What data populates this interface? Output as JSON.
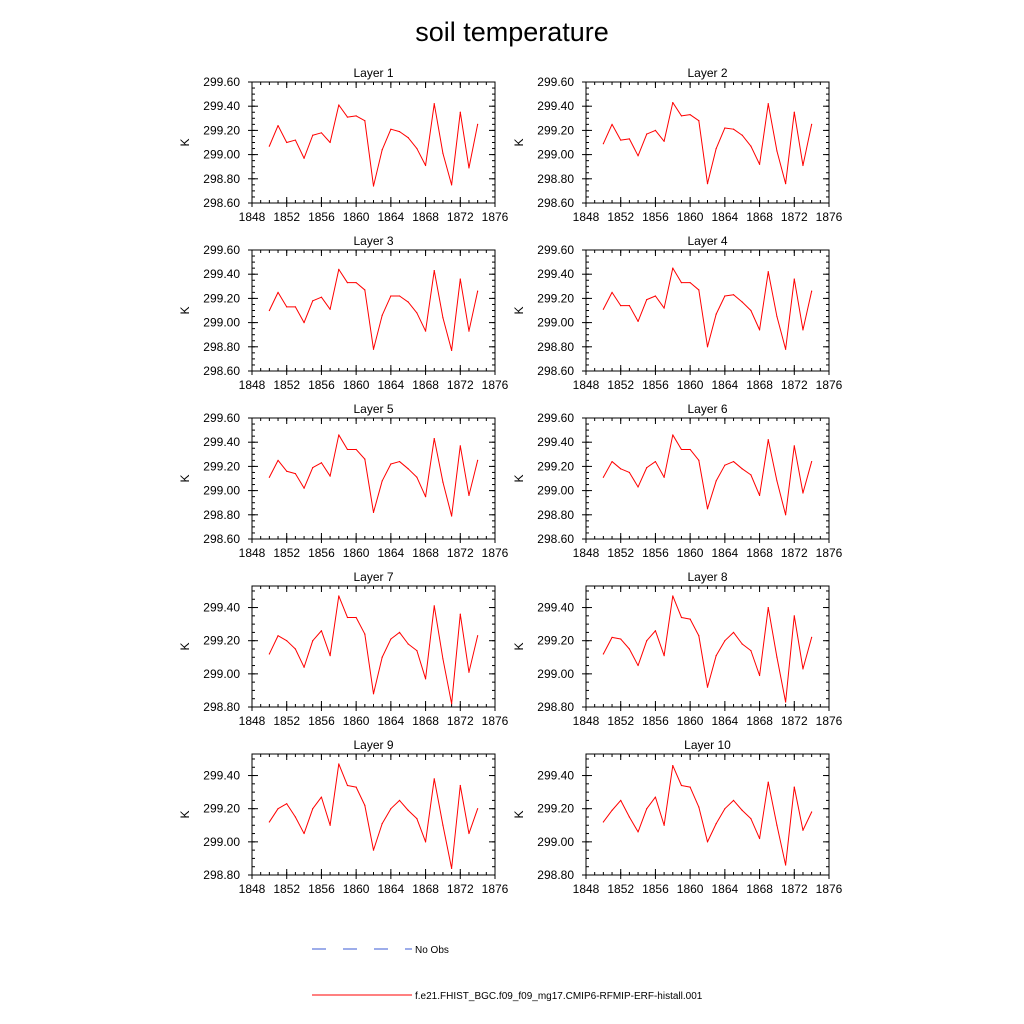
{
  "title": "soil temperature",
  "colors": {
    "model": "#ff0000",
    "obs": "#3b5bd6",
    "axis": "#000000"
  },
  "legend": [
    {
      "label": "No Obs",
      "style": "dashed",
      "color": "#3b5bd6"
    },
    {
      "label": "f.e21.FHIST_BGC.f09_f09_mg17.CMIP6-RFMIP-ERF-histall.001",
      "style": "solid",
      "color": "#ff0000"
    }
  ],
  "chart_data": [
    {
      "type": "line",
      "title": "Layer 1",
      "ylabel": "K",
      "xlim": [
        1848,
        1876
      ],
      "ylim": [
        298.6,
        299.6
      ],
      "xticks": [
        "1848",
        "1852",
        "1856",
        "1860",
        "1864",
        "1868",
        "1872",
        "1876"
      ],
      "yticks": [
        "298.60",
        "298.80",
        "299.00",
        "299.20",
        "299.40",
        "299.60"
      ],
      "x": [
        1850,
        1851,
        1852,
        1853,
        1854,
        1855,
        1856,
        1857,
        1858,
        1859,
        1860,
        1861,
        1862,
        1863,
        1864,
        1865,
        1866,
        1867,
        1868,
        1869,
        1870,
        1871,
        1872,
        1873,
        1874
      ],
      "series": [
        {
          "name": "f.e21.FHIST_BGC.f09_f09_mg17.CMIP6-RFMIP-ERF-histall.001",
          "values": [
            299.07,
            299.24,
            299.1,
            299.12,
            298.97,
            299.16,
            299.18,
            299.1,
            299.41,
            299.31,
            299.32,
            299.28,
            298.74,
            299.04,
            299.21,
            299.19,
            299.14,
            299.05,
            298.91,
            299.42,
            299.01,
            298.75,
            299.35,
            298.89,
            299.25
          ]
        }
      ]
    },
    {
      "type": "line",
      "title": "Layer 2",
      "ylabel": "K",
      "xlim": [
        1848,
        1876
      ],
      "ylim": [
        298.6,
        299.6
      ],
      "xticks": [
        "1848",
        "1852",
        "1856",
        "1860",
        "1864",
        "1868",
        "1872",
        "1876"
      ],
      "yticks": [
        "298.60",
        "298.80",
        "299.00",
        "299.20",
        "299.40",
        "299.60"
      ],
      "x": [
        1850,
        1851,
        1852,
        1853,
        1854,
        1855,
        1856,
        1857,
        1858,
        1859,
        1860,
        1861,
        1862,
        1863,
        1864,
        1865,
        1866,
        1867,
        1868,
        1869,
        1870,
        1871,
        1872,
        1873,
        1874
      ],
      "series": [
        {
          "name": "f.e21.FHIST_BGC.f09_f09_mg17.CMIP6-RFMIP-ERF-histall.001",
          "values": [
            299.09,
            299.25,
            299.12,
            299.13,
            298.99,
            299.17,
            299.2,
            299.11,
            299.43,
            299.32,
            299.33,
            299.28,
            298.76,
            299.05,
            299.22,
            299.21,
            299.16,
            299.07,
            298.92,
            299.42,
            299.03,
            298.76,
            299.35,
            298.91,
            299.25
          ]
        }
      ]
    },
    {
      "type": "line",
      "title": "Layer 3",
      "ylabel": "K",
      "xlim": [
        1848,
        1876
      ],
      "ylim": [
        298.6,
        299.6
      ],
      "xticks": [
        "1848",
        "1852",
        "1856",
        "1860",
        "1864",
        "1868",
        "1872",
        "1876"
      ],
      "yticks": [
        "298.60",
        "298.80",
        "299.00",
        "299.20",
        "299.40",
        "299.60"
      ],
      "x": [
        1850,
        1851,
        1852,
        1853,
        1854,
        1855,
        1856,
        1857,
        1858,
        1859,
        1860,
        1861,
        1862,
        1863,
        1864,
        1865,
        1866,
        1867,
        1868,
        1869,
        1870,
        1871,
        1872,
        1873,
        1874
      ],
      "series": [
        {
          "name": "f.e21.FHIST_BGC.f09_f09_mg17.CMIP6-RFMIP-ERF-histall.001",
          "values": [
            299.1,
            299.25,
            299.13,
            299.13,
            299.0,
            299.18,
            299.21,
            299.11,
            299.44,
            299.33,
            299.33,
            299.27,
            298.78,
            299.06,
            299.22,
            299.22,
            299.17,
            299.08,
            298.93,
            299.43,
            299.04,
            298.77,
            299.36,
            298.93,
            299.26
          ]
        }
      ]
    },
    {
      "type": "line",
      "title": "Layer 4",
      "ylabel": "K",
      "xlim": [
        1848,
        1876
      ],
      "ylim": [
        298.6,
        299.6
      ],
      "xticks": [
        "1848",
        "1852",
        "1856",
        "1860",
        "1864",
        "1868",
        "1872",
        "1876"
      ],
      "yticks": [
        "298.60",
        "298.80",
        "299.00",
        "299.20",
        "299.40",
        "299.60"
      ],
      "x": [
        1850,
        1851,
        1852,
        1853,
        1854,
        1855,
        1856,
        1857,
        1858,
        1859,
        1860,
        1861,
        1862,
        1863,
        1864,
        1865,
        1866,
        1867,
        1868,
        1869,
        1870,
        1871,
        1872,
        1873,
        1874
      ],
      "series": [
        {
          "name": "f.e21.FHIST_BGC.f09_f09_mg17.CMIP6-RFMIP-ERF-histall.001",
          "values": [
            299.11,
            299.25,
            299.14,
            299.14,
            299.01,
            299.19,
            299.22,
            299.12,
            299.45,
            299.33,
            299.33,
            299.27,
            298.8,
            299.07,
            299.22,
            299.23,
            299.17,
            299.1,
            298.94,
            299.42,
            299.05,
            298.78,
            299.36,
            298.94,
            299.26
          ]
        }
      ]
    },
    {
      "type": "line",
      "title": "Layer 5",
      "ylabel": "K",
      "xlim": [
        1848,
        1876
      ],
      "ylim": [
        298.6,
        299.6
      ],
      "xticks": [
        "1848",
        "1852",
        "1856",
        "1860",
        "1864",
        "1868",
        "1872",
        "1876"
      ],
      "yticks": [
        "298.60",
        "298.80",
        "299.00",
        "299.20",
        "299.40",
        "299.60"
      ],
      "x": [
        1850,
        1851,
        1852,
        1853,
        1854,
        1855,
        1856,
        1857,
        1858,
        1859,
        1860,
        1861,
        1862,
        1863,
        1864,
        1865,
        1866,
        1867,
        1868,
        1869,
        1870,
        1871,
        1872,
        1873,
        1874
      ],
      "series": [
        {
          "name": "f.e21.FHIST_BGC.f09_f09_mg17.CMIP6-RFMIP-ERF-histall.001",
          "values": [
            299.11,
            299.25,
            299.16,
            299.14,
            299.02,
            299.19,
            299.23,
            299.12,
            299.46,
            299.34,
            299.34,
            299.26,
            298.82,
            299.08,
            299.22,
            299.24,
            299.18,
            299.11,
            298.95,
            299.43,
            299.07,
            298.79,
            299.37,
            298.96,
            299.25
          ]
        }
      ]
    },
    {
      "type": "line",
      "title": "Layer 6",
      "ylabel": "K",
      "xlim": [
        1848,
        1876
      ],
      "ylim": [
        298.6,
        299.6
      ],
      "xticks": [
        "1848",
        "1852",
        "1856",
        "1860",
        "1864",
        "1868",
        "1872",
        "1876"
      ],
      "yticks": [
        "298.60",
        "298.80",
        "299.00",
        "299.20",
        "299.40",
        "299.60"
      ],
      "x": [
        1850,
        1851,
        1852,
        1853,
        1854,
        1855,
        1856,
        1857,
        1858,
        1859,
        1860,
        1861,
        1862,
        1863,
        1864,
        1865,
        1866,
        1867,
        1868,
        1869,
        1870,
        1871,
        1872,
        1873,
        1874
      ],
      "series": [
        {
          "name": "f.e21.FHIST_BGC.f09_f09_mg17.CMIP6-RFMIP-ERF-histall.001",
          "values": [
            299.11,
            299.24,
            299.18,
            299.15,
            299.03,
            299.19,
            299.24,
            299.11,
            299.46,
            299.34,
            299.34,
            299.25,
            298.85,
            299.08,
            299.21,
            299.24,
            299.18,
            299.13,
            298.96,
            299.42,
            299.08,
            298.8,
            299.37,
            298.98,
            299.24
          ]
        }
      ]
    },
    {
      "type": "line",
      "title": "Layer 7",
      "ylabel": "K",
      "xlim": [
        1848,
        1876
      ],
      "ylim": [
        298.8,
        299.53
      ],
      "xticks": [
        "1848",
        "1852",
        "1856",
        "1860",
        "1864",
        "1868",
        "1872",
        "1876"
      ],
      "yticks": [
        "298.80",
        "299.00",
        "299.20",
        "299.40"
      ],
      "x": [
        1850,
        1851,
        1852,
        1853,
        1854,
        1855,
        1856,
        1857,
        1858,
        1859,
        1860,
        1861,
        1862,
        1863,
        1864,
        1865,
        1866,
        1867,
        1868,
        1869,
        1870,
        1871,
        1872,
        1873,
        1874
      ],
      "series": [
        {
          "name": "f.e21.FHIST_BGC.f09_f09_mg17.CMIP6-RFMIP-ERF-histall.001",
          "values": [
            299.12,
            299.23,
            299.2,
            299.15,
            299.04,
            299.2,
            299.26,
            299.11,
            299.47,
            299.34,
            299.34,
            299.24,
            298.88,
            299.1,
            299.21,
            299.25,
            299.18,
            299.14,
            298.97,
            299.41,
            299.09,
            298.82,
            299.36,
            299.01,
            299.23
          ]
        }
      ]
    },
    {
      "type": "line",
      "title": "Layer 8",
      "ylabel": "K",
      "xlim": [
        1848,
        1876
      ],
      "ylim": [
        298.8,
        299.53
      ],
      "xticks": [
        "1848",
        "1852",
        "1856",
        "1860",
        "1864",
        "1868",
        "1872",
        "1876"
      ],
      "yticks": [
        "298.80",
        "299.00",
        "299.20",
        "299.40"
      ],
      "x": [
        1850,
        1851,
        1852,
        1853,
        1854,
        1855,
        1856,
        1857,
        1858,
        1859,
        1860,
        1861,
        1862,
        1863,
        1864,
        1865,
        1866,
        1867,
        1868,
        1869,
        1870,
        1871,
        1872,
        1873,
        1874
      ],
      "series": [
        {
          "name": "f.e21.FHIST_BGC.f09_f09_mg17.CMIP6-RFMIP-ERF-histall.001",
          "values": [
            299.12,
            299.22,
            299.21,
            299.15,
            299.05,
            299.2,
            299.26,
            299.11,
            299.47,
            299.34,
            299.33,
            299.23,
            298.92,
            299.11,
            299.2,
            299.25,
            299.18,
            299.14,
            298.99,
            299.4,
            299.1,
            298.83,
            299.35,
            299.03,
            299.22
          ]
        }
      ]
    },
    {
      "type": "line",
      "title": "Layer 9",
      "ylabel": "K",
      "xlim": [
        1848,
        1876
      ],
      "ylim": [
        298.8,
        299.53
      ],
      "xticks": [
        "1848",
        "1852",
        "1856",
        "1860",
        "1864",
        "1868",
        "1872",
        "1876"
      ],
      "yticks": [
        "298.80",
        "299.00",
        "299.20",
        "299.40"
      ],
      "x": [
        1850,
        1851,
        1852,
        1853,
        1854,
        1855,
        1856,
        1857,
        1858,
        1859,
        1860,
        1861,
        1862,
        1863,
        1864,
        1865,
        1866,
        1867,
        1868,
        1869,
        1870,
        1871,
        1872,
        1873,
        1874
      ],
      "series": [
        {
          "name": "f.e21.FHIST_BGC.f09_f09_mg17.CMIP6-RFMIP-ERF-histall.001",
          "values": [
            299.12,
            299.2,
            299.23,
            299.15,
            299.05,
            299.2,
            299.27,
            299.1,
            299.47,
            299.34,
            299.33,
            299.22,
            298.95,
            299.11,
            299.2,
            299.25,
            299.19,
            299.14,
            299.0,
            299.38,
            299.1,
            298.84,
            299.34,
            299.05,
            299.2
          ]
        }
      ]
    },
    {
      "type": "line",
      "title": "Layer 10",
      "ylabel": "K",
      "xlim": [
        1848,
        1876
      ],
      "ylim": [
        298.8,
        299.53
      ],
      "xticks": [
        "1848",
        "1852",
        "1856",
        "1860",
        "1864",
        "1868",
        "1872",
        "1876"
      ],
      "yticks": [
        "298.80",
        "299.00",
        "299.20",
        "299.40"
      ],
      "x": [
        1850,
        1851,
        1852,
        1853,
        1854,
        1855,
        1856,
        1857,
        1858,
        1859,
        1860,
        1861,
        1862,
        1863,
        1864,
        1865,
        1866,
        1867,
        1868,
        1869,
        1870,
        1871,
        1872,
        1873,
        1874
      ],
      "series": [
        {
          "name": "f.e21.FHIST_BGC.f09_f09_mg17.CMIP6-RFMIP-ERF-histall.001",
          "values": [
            299.12,
            299.19,
            299.25,
            299.15,
            299.06,
            299.2,
            299.27,
            299.1,
            299.46,
            299.34,
            299.33,
            299.21,
            299.0,
            299.11,
            299.2,
            299.25,
            299.19,
            299.14,
            299.02,
            299.36,
            299.1,
            298.86,
            299.33,
            299.07,
            299.18
          ]
        }
      ]
    }
  ]
}
